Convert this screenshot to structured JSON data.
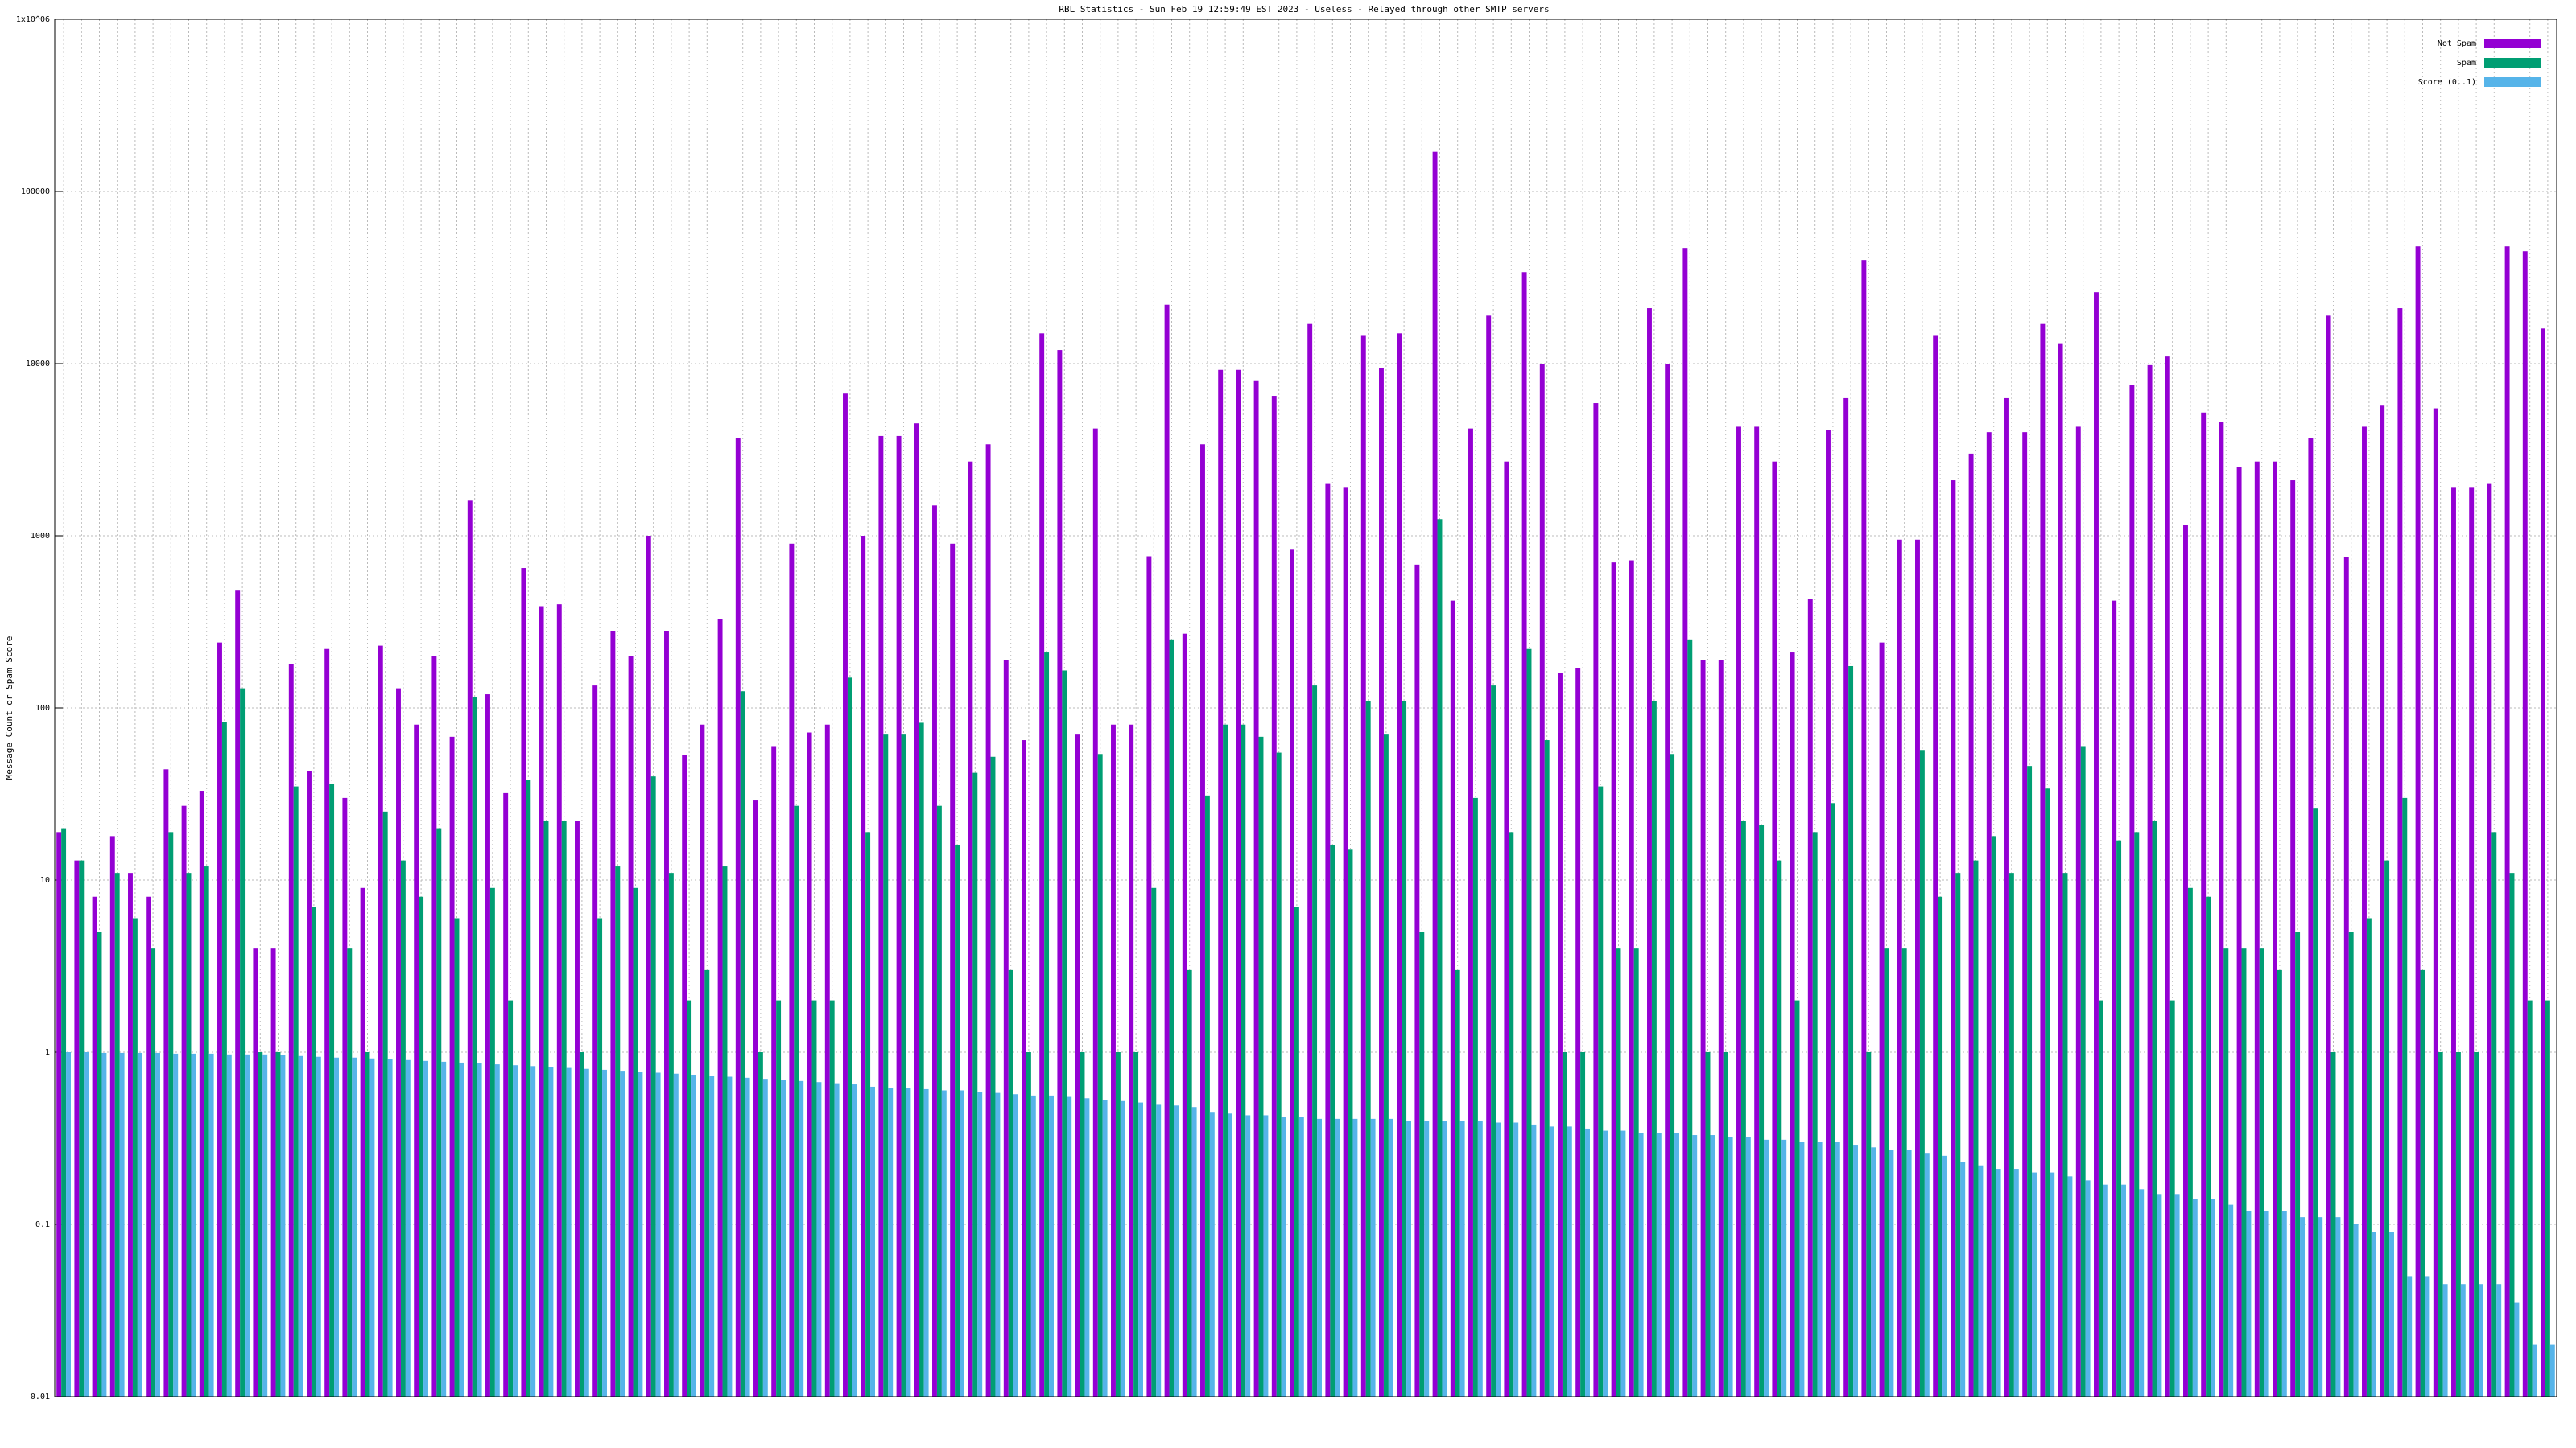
{
  "chart_data": {
    "type": "bar",
    "title": "RBL Statistics - Sun Feb 19 12:59:49 EST 2023 - Useless - Relayed through other SMTP servers",
    "ylabel": "Message Count or Spam Score",
    "ylog": true,
    "grid": true,
    "legend_position": "top-right",
    "ylim": [
      0.01,
      1000000
    ],
    "yticks": [
      0.01,
      0.1,
      1,
      10,
      100,
      1000,
      10000,
      100000,
      {
        "value": 1000000,
        "label": "1x10^06"
      }
    ],
    "categories": [
      null,
      null,
      null,
      null,
      null,
      null,
      null,
      null,
      null,
      null,
      null,
      null,
      null,
      null,
      null,
      null,
      null,
      null,
      null,
      null,
      null,
      null,
      null,
      null,
      null,
      null,
      null,
      null,
      null,
      null,
      null,
      null,
      null,
      null,
      null,
      null,
      null,
      null,
      null,
      null,
      null,
      null,
      null,
      null,
      null,
      null,
      null,
      null,
      null,
      null,
      null,
      null,
      null,
      null,
      null,
      null,
      null,
      null,
      null,
      null,
      null,
      null,
      null,
      null,
      null,
      null,
      null,
      null,
      null,
      null,
      null,
      null,
      null,
      null,
      null,
      null,
      null,
      null,
      null,
      null,
      null,
      null,
      null,
      null,
      null,
      null,
      null,
      null,
      null,
      null,
      null,
      null,
      null,
      null,
      null,
      null,
      null,
      null,
      null,
      null,
      null,
      null,
      null,
      null,
      null,
      null,
      null,
      null,
      null,
      null,
      null,
      null,
      null,
      null,
      null,
      null,
      null,
      null,
      null,
      null,
      null,
      null,
      null,
      null,
      null,
      null,
      null,
      null,
      null,
      null,
      null,
      null,
      null,
      null,
      null,
      null,
      null,
      null,
      null,
      null
    ],
    "series": [
      {
        "name": "Not Spam",
        "color": "#9400d3",
        "values": [
          19,
          13,
          8,
          18,
          11,
          8,
          44,
          27,
          33,
          240,
          480,
          4,
          4,
          180,
          43,
          220,
          30,
          9,
          230,
          130,
          80,
          200,
          68,
          1600,
          120,
          32,
          650,
          390,
          400,
          22,
          135,
          280,
          200,
          1000,
          280,
          53,
          80,
          330,
          3700,
          29,
          60,
          900,
          72,
          80,
          6700,
          1000,
          3800,
          3800,
          4500,
          1500,
          900,
          2700,
          3400,
          190,
          65,
          15000,
          12000,
          70,
          4200,
          80,
          80,
          760,
          22000,
          270,
          3400,
          9200,
          9200,
          8000,
          6500,
          830,
          17000,
          2000,
          1900,
          14500,
          9400,
          15000,
          680,
          170000,
          420,
          4200,
          19000,
          2700,
          34000,
          10000,
          160,
          170,
          5900,
          700,
          720,
          21000,
          10000,
          47000,
          190,
          190,
          4300,
          4300,
          2700,
          210,
          430,
          4100,
          6300,
          40000,
          240,
          950,
          950,
          14500,
          2100,
          3000,
          4000,
          6300,
          4000,
          17000,
          13000,
          4300,
          26000,
          420,
          7500,
          9800,
          11000,
          1150,
          5200,
          4600,
          2500,
          2700,
          2700,
          2100,
          3700,
          19000,
          750,
          4300,
          5700,
          21000,
          48000,
          5500,
          1900,
          1900,
          2000,
          48000,
          45000,
          16000
        ]
      },
      {
        "name": "Spam",
        "color": "#009e73",
        "values": [
          20,
          13,
          5,
          11,
          6,
          4,
          19,
          11,
          12,
          83,
          130,
          1,
          1,
          35,
          7,
          36,
          4,
          1,
          25,
          13,
          8,
          20,
          6,
          115,
          9,
          2,
          38,
          22,
          22,
          1,
          6,
          12,
          9,
          40,
          11,
          2,
          3,
          12,
          125,
          1,
          2,
          27,
          2,
          2,
          150,
          19,
          70,
          70,
          82,
          27,
          16,
          42,
          52,
          3,
          1,
          210,
          165,
          1,
          54,
          1,
          1,
          9,
          250,
          3,
          31,
          80,
          80,
          68,
          55,
          7,
          135,
          16,
          15,
          110,
          70,
          110,
          5,
          1250,
          3,
          30,
          135,
          19,
          220,
          65,
          1,
          1,
          35,
          4,
          4,
          110,
          54,
          250,
          1,
          1,
          22,
          21,
          13,
          2,
          19,
          28,
          175,
          1,
          4,
          4,
          57,
          8,
          11,
          13,
          18,
          11,
          46,
          34,
          11,
          60,
          2,
          17,
          19,
          22,
          2,
          9,
          8,
          4,
          4,
          4,
          3,
          5,
          26,
          1,
          5,
          6,
          13,
          30,
          3,
          1,
          1,
          1,
          19,
          11,
          2,
          2
        ]
      },
      {
        "name": "Score (0..1)",
        "color": "#56b4e9",
        "values": [
          1,
          1,
          0.99,
          0.99,
          0.99,
          0.99,
          0.98,
          0.98,
          0.98,
          0.97,
          0.97,
          0.97,
          0.96,
          0.95,
          0.94,
          0.93,
          0.93,
          0.92,
          0.91,
          0.9,
          0.89,
          0.88,
          0.87,
          0.86,
          0.85,
          0.84,
          0.83,
          0.82,
          0.81,
          0.8,
          0.79,
          0.78,
          0.77,
          0.76,
          0.75,
          0.74,
          0.73,
          0.72,
          0.71,
          0.7,
          0.69,
          0.68,
          0.67,
          0.66,
          0.65,
          0.63,
          0.62,
          0.62,
          0.61,
          0.6,
          0.6,
          0.59,
          0.58,
          0.57,
          0.56,
          0.56,
          0.55,
          0.54,
          0.53,
          0.52,
          0.51,
          0.5,
          0.49,
          0.48,
          0.45,
          0.44,
          0.43,
          0.43,
          0.42,
          0.42,
          0.41,
          0.41,
          0.41,
          0.41,
          0.41,
          0.4,
          0.4,
          0.4,
          0.4,
          0.4,
          0.39,
          0.39,
          0.38,
          0.37,
          0.37,
          0.36,
          0.35,
          0.35,
          0.34,
          0.34,
          0.34,
          0.33,
          0.33,
          0.32,
          0.32,
          0.31,
          0.31,
          0.3,
          0.3,
          0.3,
          0.29,
          0.28,
          0.27,
          0.27,
          0.26,
          0.25,
          0.23,
          0.22,
          0.21,
          0.21,
          0.2,
          0.2,
          0.19,
          0.18,
          0.17,
          0.17,
          0.16,
          0.15,
          0.15,
          0.14,
          0.14,
          0.13,
          0.12,
          0.12,
          0.12,
          0.11,
          0.11,
          0.11,
          0.1,
          0.09,
          0.09,
          0.05,
          0.05,
          0.045,
          0.045,
          0.045,
          0.045,
          0.035,
          0.02,
          0.02
        ]
      }
    ]
  }
}
